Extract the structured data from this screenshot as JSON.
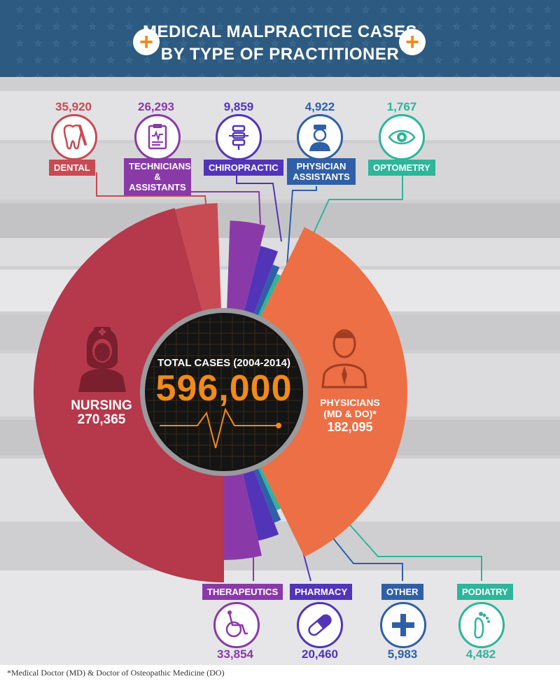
{
  "header": {
    "title_line1": "MEDICAL MALPRACTICE CASES",
    "title_line2": "BY TYPE OF PRACTITIONER"
  },
  "center": {
    "title": "TOTAL CASES (2004-2014)",
    "total": "596,000"
  },
  "big_segments": {
    "nursing": {
      "label": "NURSING",
      "value": "270,365"
    },
    "physicians": {
      "label_line1": "PHYSICIANS",
      "label_line2": "(MD & DO)*",
      "value": "182,095"
    }
  },
  "top_categories": [
    {
      "label": "DENTAL",
      "value": "35,920",
      "color": "#c84a53",
      "icon": "tooth-icon"
    },
    {
      "label": "TECHNICIANS & ASSISTANTS",
      "value": "26,293",
      "color": "#8a3aa8",
      "icon": "clipboard-icon"
    },
    {
      "label": "CHIROPRACTIC",
      "value": "9,859",
      "color": "#5234b8",
      "icon": "spine-icon"
    },
    {
      "label": "PHYSICIAN ASSISTANTS",
      "value": "4,922",
      "color": "#2f5fa8",
      "icon": "nurse-icon"
    },
    {
      "label": "OPTOMETRY",
      "value": "1,767",
      "color": "#2eb59a",
      "icon": "eye-icon"
    }
  ],
  "bottom_categories": [
    {
      "label": "THERAPEUTICS",
      "value": "33,854",
      "color": "#8a3aa8",
      "icon": "wheelchair-icon"
    },
    {
      "label": "PHARMACY",
      "value": "20,460",
      "color": "#5234b8",
      "icon": "pill-icon"
    },
    {
      "label": "OTHER",
      "value": "5,983",
      "color": "#2f5fa8",
      "icon": "plus-icon"
    },
    {
      "label": "PODIATRY",
      "value": "4,482",
      "color": "#2eb59a",
      "icon": "foot-icon"
    }
  ],
  "footnote": "*Medical Doctor (MD) & Doctor of Osteopathic Medicine (DO)",
  "chart_data": {
    "type": "pie",
    "title": "MEDICAL MALPRACTICE CASES BY TYPE OF PRACTITIONER",
    "subtitle": "TOTAL CASES (2004-2014) 596,000",
    "categories": [
      "Nursing",
      "Physicians (MD & DO)",
      "Dental",
      "Technicians & Assistants",
      "Chiropractic",
      "Physician Assistants",
      "Optometry",
      "Therapeutics",
      "Pharmacy",
      "Other",
      "Podiatry"
    ],
    "values": [
      270365,
      182095,
      35920,
      26293,
      9859,
      4922,
      1767,
      33854,
      20460,
      5983,
      4482
    ],
    "total": 596000,
    "colors": {
      "nursing": "#b5384b",
      "physicians": "#ec6f45",
      "dental": "#c84a53",
      "purple": "#8a3aa8",
      "indigo": "#5234b8",
      "blue": "#2f5fa8",
      "teal": "#2eb59a",
      "orange": "#f08a1a"
    }
  }
}
